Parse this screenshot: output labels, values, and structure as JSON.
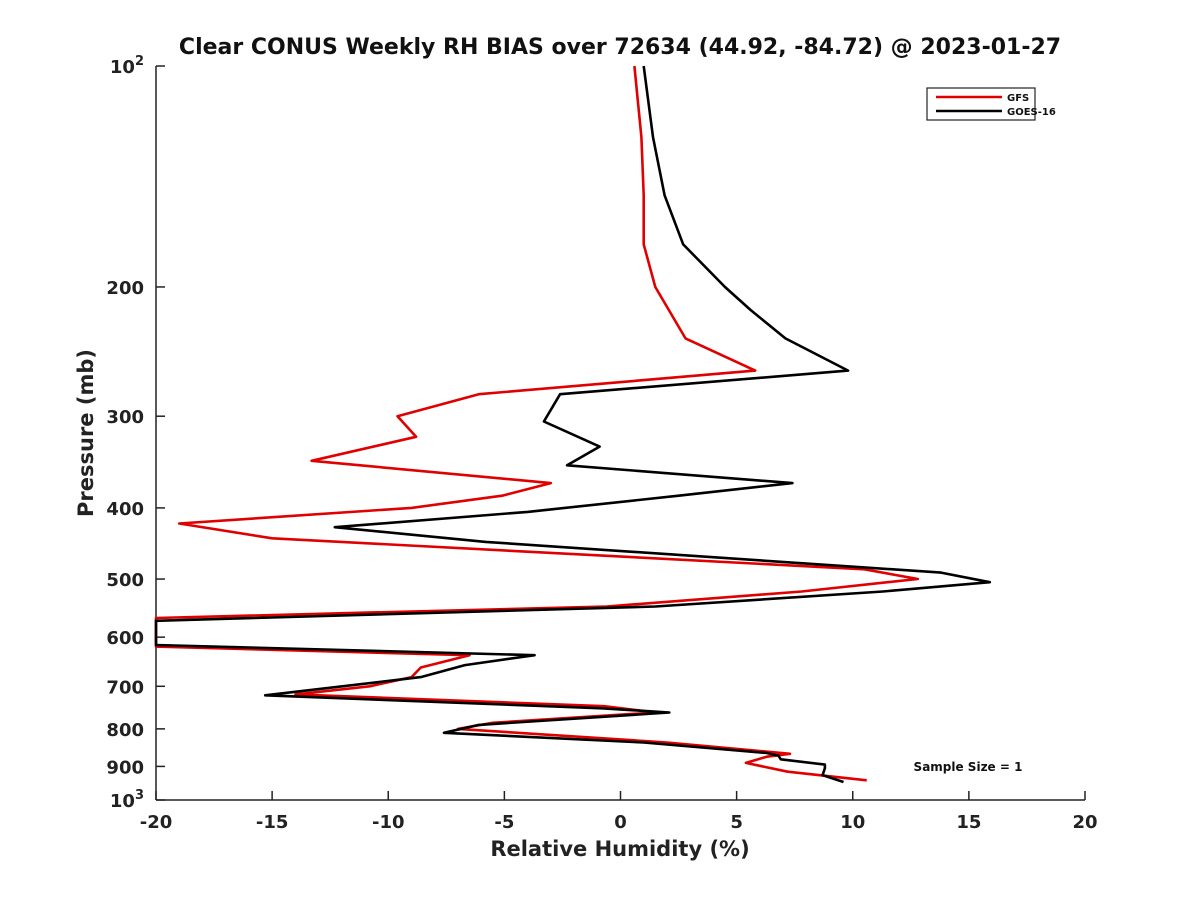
{
  "chart_data": {
    "type": "line",
    "title": "Clear CONUS Weekly RH BIAS over 72634 (44.92, -84.72) @ 2023-01-27",
    "xlabel": "Relative Humidity (%)",
    "ylabel": "Pressure (mb)",
    "xlim": [
      -20,
      20
    ],
    "ylim": [
      100,
      1000
    ],
    "yscale": "log",
    "yreversed": true,
    "x_ticks": [
      -20,
      -15,
      -10,
      -5,
      0,
      5,
      10,
      15,
      20
    ],
    "x_tick_labels": [
      "-20",
      "-15",
      "-10",
      "-5",
      "0",
      "5",
      "10",
      "15",
      "20"
    ],
    "y_ticks": [
      200,
      300,
      400,
      500,
      600,
      700,
      800,
      900
    ],
    "y_tick_labels": [
      "200",
      "300",
      "400",
      "500",
      "600",
      "700",
      "800",
      "900"
    ],
    "y_decade_ticks": [
      {
        "value": 100,
        "base": "10",
        "exp": "2"
      },
      {
        "value": 1000,
        "base": "10",
        "exp": "3"
      }
    ],
    "legend_location": "top-right",
    "series": [
      {
        "name": "GFS",
        "color": "#e00000",
        "points": [
          [
            0.6,
            100
          ],
          [
            0.9,
            125
          ],
          [
            1.0,
            150
          ],
          [
            1.0,
            175
          ],
          [
            1.5,
            200
          ],
          [
            2.8,
            235
          ],
          [
            5.8,
            260
          ],
          [
            -6.1,
            280
          ],
          [
            -9.6,
            300
          ],
          [
            -8.8,
            320
          ],
          [
            -13.3,
            345
          ],
          [
            -3.0,
            370
          ],
          [
            -5.1,
            385
          ],
          [
            -9.0,
            400
          ],
          [
            -19.0,
            420
          ],
          [
            -15.0,
            440
          ],
          [
            10.5,
            485
          ],
          [
            12.8,
            500
          ],
          [
            7.8,
            520
          ],
          [
            -0.6,
            545
          ],
          [
            -20.0,
            565
          ],
          [
            -20.0,
            618
          ],
          [
            -6.5,
            635
          ],
          [
            -8.6,
            660
          ],
          [
            -9.0,
            680
          ],
          [
            -10.8,
            700
          ],
          [
            -14.0,
            718
          ],
          [
            -0.7,
            745
          ],
          [
            1.5,
            760
          ],
          [
            -5.5,
            785
          ],
          [
            -7.0,
            800
          ],
          [
            2.0,
            835
          ],
          [
            7.3,
            865
          ],
          [
            6.3,
            873
          ],
          [
            5.4,
            890
          ],
          [
            7.2,
            915
          ],
          [
            10.6,
            940
          ]
        ]
      },
      {
        "name": "GOES-16",
        "color": "#000000",
        "points": [
          [
            1.0,
            100
          ],
          [
            1.4,
            125
          ],
          [
            1.9,
            150
          ],
          [
            2.7,
            175
          ],
          [
            4.5,
            200
          ],
          [
            5.6,
            215
          ],
          [
            7.1,
            235
          ],
          [
            9.8,
            260
          ],
          [
            -2.6,
            280
          ],
          [
            -3.3,
            305
          ],
          [
            -0.9,
            330
          ],
          [
            -2.3,
            350
          ],
          [
            7.4,
            370
          ],
          [
            2.5,
            385
          ],
          [
            -4.0,
            405
          ],
          [
            -12.3,
            425
          ],
          [
            -5.8,
            445
          ],
          [
            13.8,
            490
          ],
          [
            15.9,
            505
          ],
          [
            11.3,
            520
          ],
          [
            1.5,
            545
          ],
          [
            -20.0,
            570
          ],
          [
            -20.0,
            615
          ],
          [
            -3.7,
            635
          ],
          [
            -6.7,
            655
          ],
          [
            -8.6,
            680
          ],
          [
            -15.3,
            720
          ],
          [
            -0.8,
            750
          ],
          [
            2.1,
            760
          ],
          [
            -6.1,
            790
          ],
          [
            -7.6,
            810
          ],
          [
            1.0,
            835
          ],
          [
            6.3,
            863
          ],
          [
            6.8,
            870
          ],
          [
            6.9,
            880
          ],
          [
            8.8,
            895
          ],
          [
            8.8,
            905
          ],
          [
            8.7,
            925
          ],
          [
            9.6,
            945
          ]
        ]
      }
    ],
    "annotation": "Sample Size = 1"
  }
}
